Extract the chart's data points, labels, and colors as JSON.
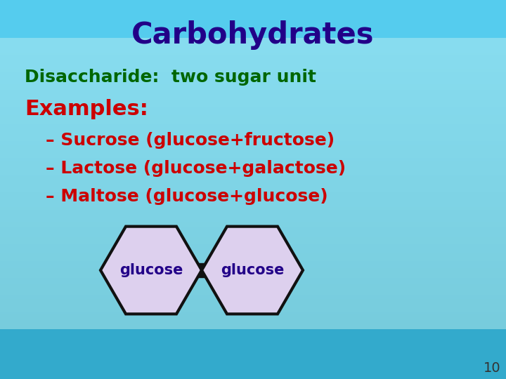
{
  "title": "Carbohydrates",
  "title_color": "#220088",
  "title_fontsize": 30,
  "subtitle": "Disaccharide:  two sugar unit",
  "subtitle_color": "#006600",
  "subtitle_fontsize": 18,
  "examples_label": "Examples:",
  "examples_color": "#cc0000",
  "examples_fontsize": 22,
  "bullets": [
    "– Sucrose (glucose+fructose)",
    "– Lactose (glucose+galactose)",
    "– Maltose (glucose+glucose)"
  ],
  "bullets_color": "#cc0000",
  "bullets_fontsize": 18,
  "hexagon_fill": "#ddd0ee",
  "hexagon_edge": "#111111",
  "hexagon_label": "glucose",
  "hexagon_label_color": "#220088",
  "hexagon_label_fontsize": 15,
  "slide_number": "10",
  "slide_number_color": "#333333",
  "bg_color_top": "#88ddee",
  "bg_color_mid": "#aaeeff",
  "bg_color_bot": "#44bbdd",
  "font_family": "Comic Sans MS"
}
